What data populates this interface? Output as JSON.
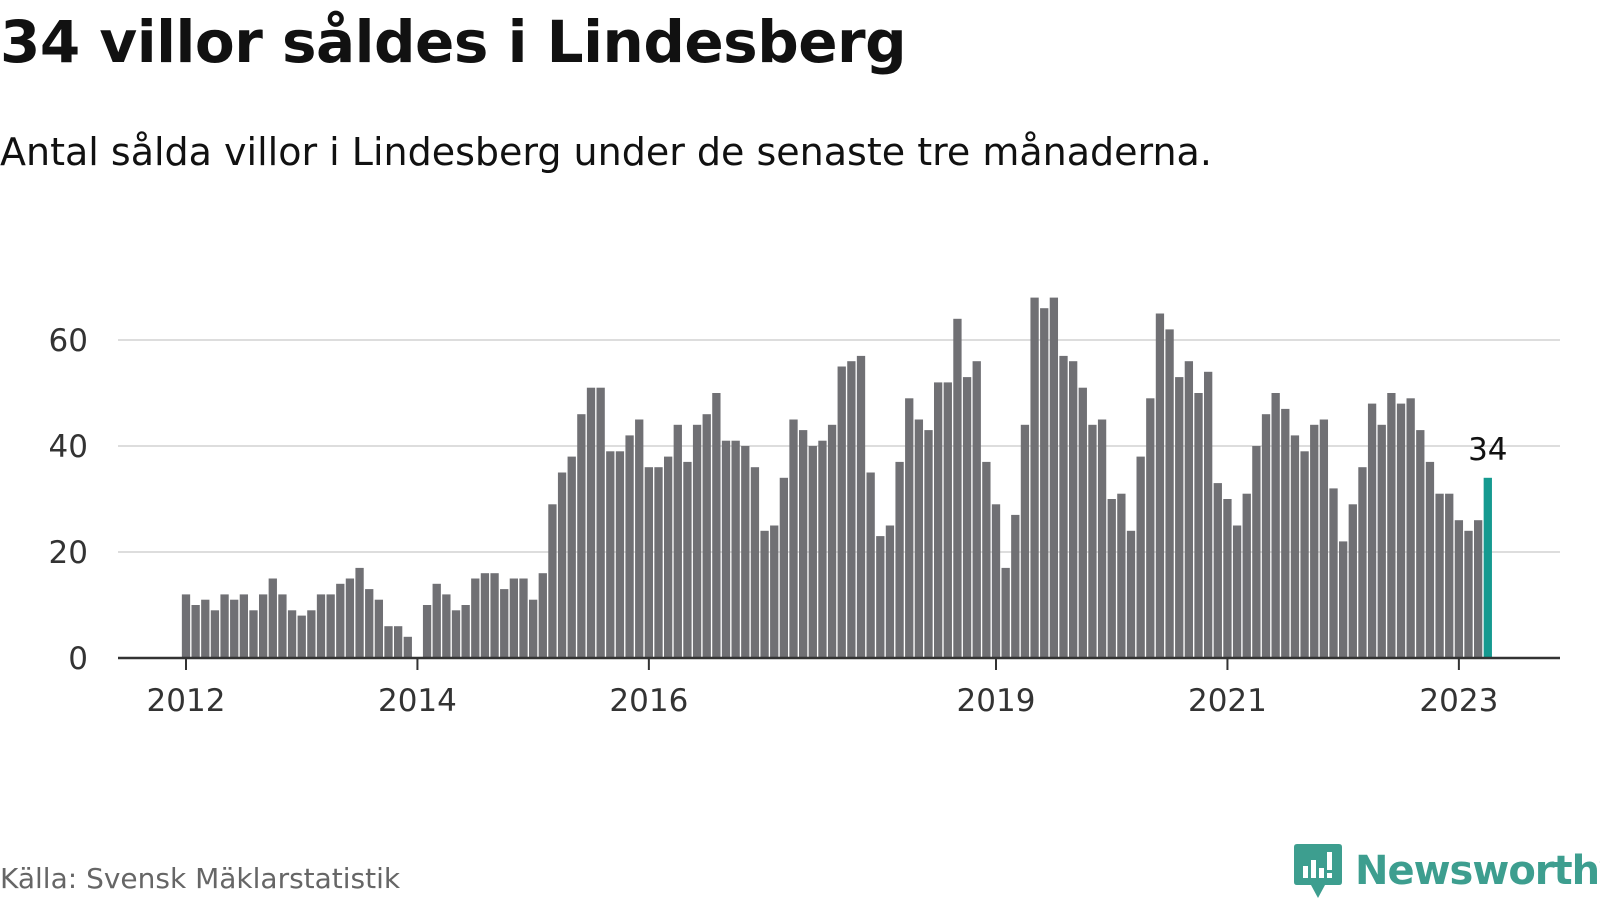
{
  "header": {
    "title": "34 villor såldes i Lindesberg",
    "subtitle": "Antal sålda villor i Lindesberg under de senaste tre månaderna."
  },
  "footer": {
    "source": "Källa: Svensk Mäklarstatistik",
    "brand": "Newsworthy"
  },
  "colors": {
    "bar": "#707074",
    "highlight": "#159a90",
    "grid": "#dddddd",
    "axis": "#333333",
    "brand": "#3d9e8f"
  },
  "chart_data": {
    "type": "bar",
    "title": "34 villor såldes i Lindesberg",
    "subtitle": "Antal sålda villor i Lindesberg under de senaste tre månaderna.",
    "xlabel": "",
    "ylabel": "",
    "ylim": [
      0,
      70
    ],
    "yticks": [
      0,
      20,
      40,
      60
    ],
    "x_start": "2012-01",
    "x_end": "2023-04",
    "x_ticks": [
      {
        "label": "2012",
        "date": "2012-01"
      },
      {
        "label": "2014",
        "date": "2014-01"
      },
      {
        "label": "2016",
        "date": "2016-01"
      },
      {
        "label": "2019",
        "date": "2019-01"
      },
      {
        "label": "2021",
        "date": "2021-01"
      },
      {
        "label": "2023",
        "date": "2023-01"
      }
    ],
    "grid": true,
    "legend": "none",
    "highlight_label": "34",
    "values": [
      12,
      10,
      11,
      9,
      12,
      11,
      12,
      9,
      12,
      15,
      12,
      9,
      8,
      9,
      12,
      12,
      14,
      15,
      17,
      13,
      11,
      6,
      6,
      4,
      0,
      10,
      14,
      12,
      9,
      10,
      15,
      16,
      16,
      13,
      15,
      15,
      11,
      16,
      29,
      35,
      38,
      46,
      51,
      51,
      39,
      39,
      42,
      45,
      36,
      36,
      38,
      44,
      37,
      44,
      46,
      50,
      41,
      41,
      40,
      36,
      24,
      25,
      34,
      45,
      43,
      40,
      41,
      44,
      55,
      56,
      57,
      35,
      23,
      25,
      37,
      49,
      45,
      43,
      52,
      52,
      64,
      53,
      56,
      37,
      29,
      17,
      27,
      44,
      68,
      66,
      68,
      57,
      56,
      51,
      44,
      45,
      30,
      31,
      24,
      38,
      49,
      65,
      62,
      53,
      56,
      50,
      54,
      33,
      30,
      25,
      31,
      40,
      46,
      50,
      47,
      42,
      39,
      44,
      45,
      32,
      22,
      29,
      36,
      48,
      44,
      50,
      48,
      49,
      43,
      37,
      31,
      31,
      26,
      24,
      26,
      34
    ]
  }
}
